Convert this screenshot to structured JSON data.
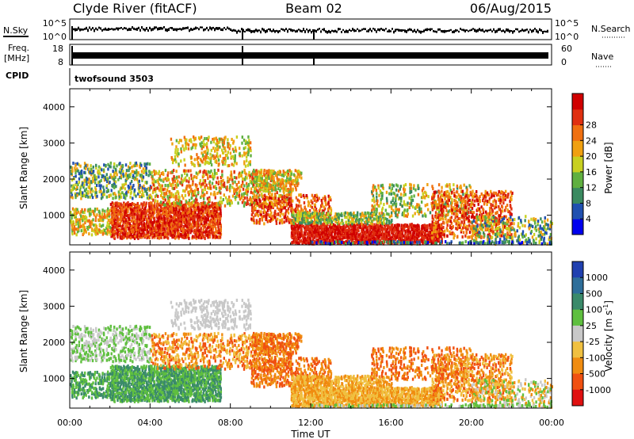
{
  "header": {
    "station": "Clyde River (fitACF)",
    "beam": "Beam 02",
    "date": "06/Aug/2015"
  },
  "strips": {
    "nsky_label": "N.Sky",
    "nsky_tick_top": "10^5",
    "nsky_tick_bottom": "10^0",
    "nsearch_label": "N.Search",
    "nsearch_tick_top": "10^5",
    "nsearch_tick_bottom": "10^0",
    "freq_label": "Freq.",
    "freq_unit": "[MHz]",
    "freq_tick_top": "18",
    "freq_tick_bottom": "8",
    "nave_label": "Nave",
    "nave_tick_top": "60",
    "nave_tick_bottom": "0",
    "cpid_label": "CPID",
    "cpid_value": "twofsound 3503"
  },
  "chart_data": [
    {
      "type": "heatmap",
      "name": "power",
      "ylabel": "Slant Range [km]",
      "xlabel": "Time UT",
      "x_ticks": [
        "00:00",
        "04:00",
        "08:00",
        "12:00",
        "16:00",
        "20:00",
        "00:00"
      ],
      "y_ticks": [
        1000,
        2000,
        3000,
        4000
      ],
      "ylim": [
        180,
        4500
      ],
      "xlim_hours": [
        0,
        24
      ],
      "colorbar_label": "Power [dB]",
      "colorbar_ticks": [
        "4",
        "8",
        "12",
        "16",
        "20",
        "24",
        "28"
      ],
      "colorbar_colors": [
        "#0000ee",
        "#2050b0",
        "#3a8a60",
        "#60b040",
        "#c8d020",
        "#f0a010",
        "#f07010",
        "#e03010",
        "#d00000"
      ]
    },
    {
      "type": "heatmap",
      "name": "velocity",
      "ylabel": "Slant Range [km]",
      "xlabel": "Time UT",
      "x_ticks": [
        "00:00",
        "04:00",
        "08:00",
        "12:00",
        "16:00",
        "20:00",
        "00:00"
      ],
      "y_ticks": [
        1000,
        2000,
        3000,
        4000
      ],
      "ylim": [
        180,
        4500
      ],
      "xlim_hours": [
        0,
        24
      ],
      "colorbar_label": "Velocity [m s",
      "colorbar_label_exp": "-1",
      "colorbar_label_close": "]",
      "colorbar_ticks": [
        "1000",
        "500",
        "100",
        "25",
        "-25",
        "-100",
        "-500",
        "-1000"
      ],
      "colorbar_colors": [
        "#2040b0",
        "#2e6e9a",
        "#3a8a6a",
        "#5fbf3f",
        "#c8c8c8",
        "#f0c040",
        "#f08c10",
        "#f05010",
        "#e01010"
      ]
    }
  ],
  "time_axis_label": "Time UT"
}
